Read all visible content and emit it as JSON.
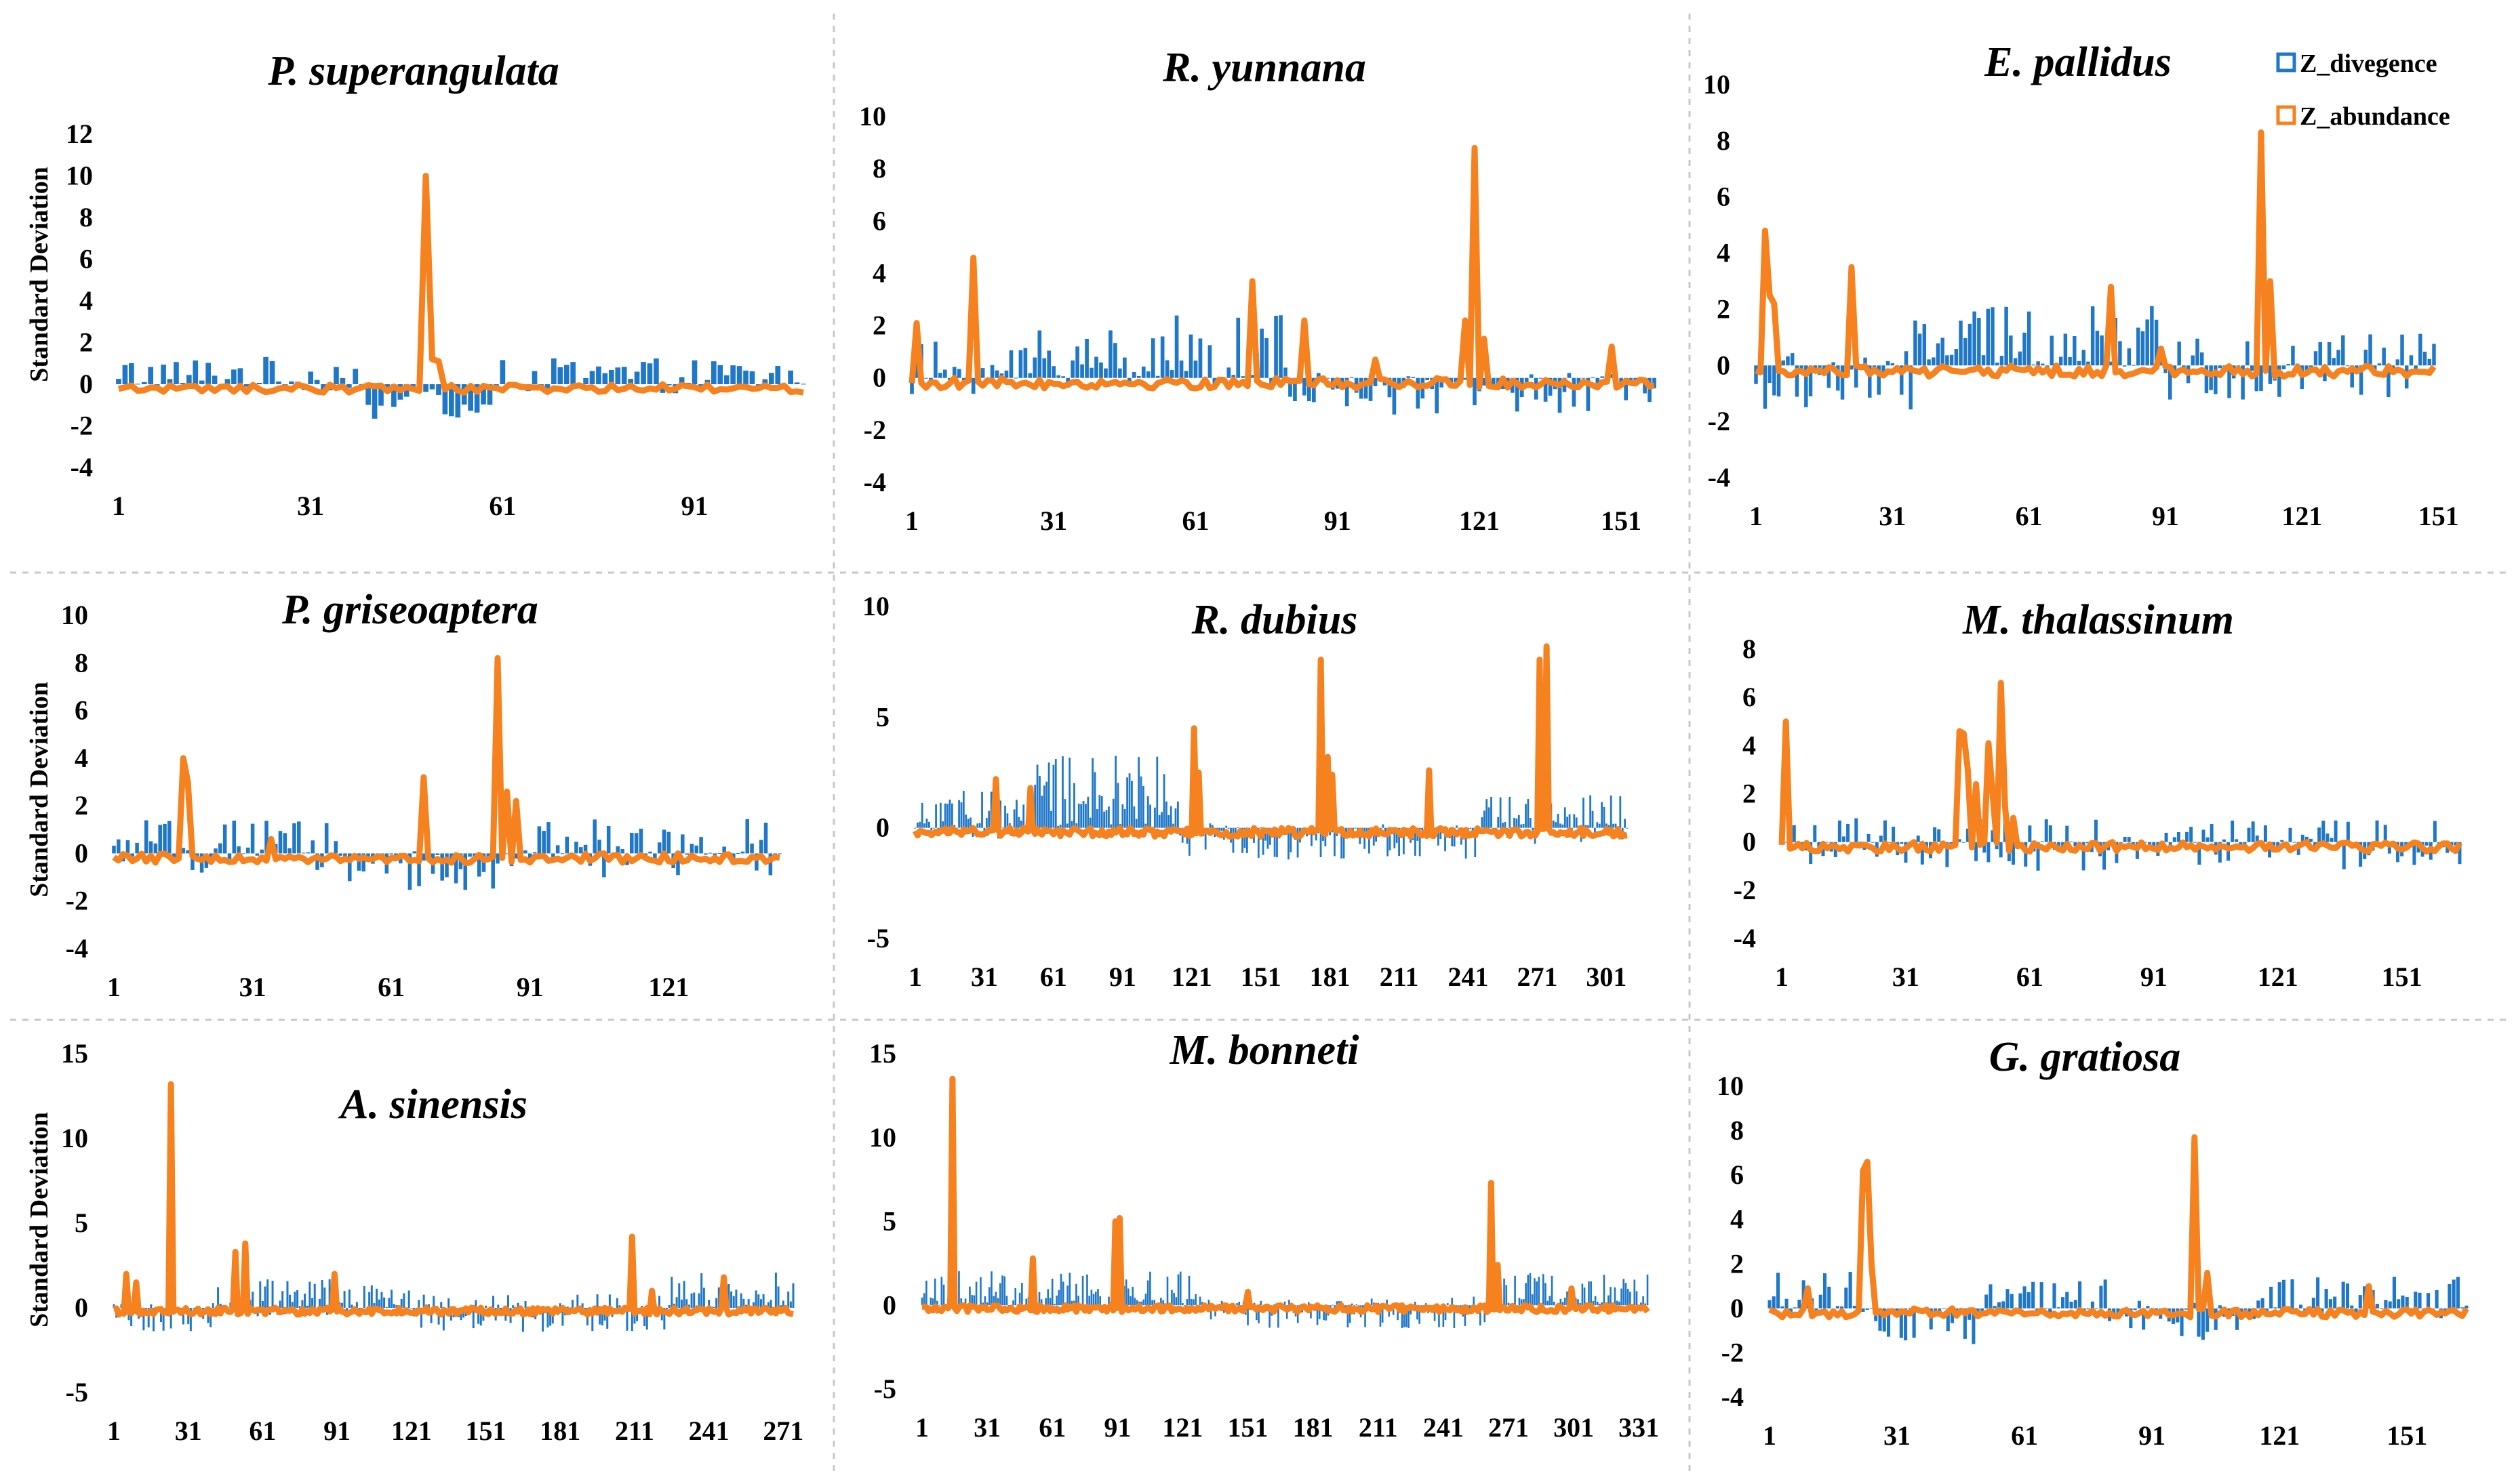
{
  "legend": {
    "items": [
      {
        "label": "Z_divegence",
        "color": "#1f77c8"
      },
      {
        "label": "Z_abundance",
        "color": "#f5821f"
      }
    ]
  },
  "ylabel": "Standard Deviation",
  "ylabel_spaced": "Standard  Deviation",
  "colors": {
    "divergence": "#1f77c8",
    "abundance": "#f5821f",
    "grid": "#c8c8c8"
  },
  "chart_data": [
    {
      "type": "bar+line",
      "title": "P. superangulata",
      "n": 108,
      "ylim": [
        -4,
        12
      ],
      "yticks": [
        "-4",
        "-2",
        "0",
        "2",
        "4",
        "6",
        "8",
        "10",
        "12"
      ],
      "xticks": [
        "1",
        "31",
        "61",
        "91"
      ],
      "xtick_values": [
        1,
        31,
        61,
        91
      ],
      "ylabel_visible": true,
      "ylabel_variant": "plain",
      "spikes": [
        {
          "x": 49,
          "value": 10
        },
        {
          "x": 50,
          "value": 1.2
        },
        {
          "x": 51,
          "value": 1.1
        }
      ],
      "divergence_profile": [
        {
          "from": 1,
          "to": 39,
          "mean": 0.5,
          "amp": 0.6
        },
        {
          "from": 40,
          "to": 60,
          "mean": -1.3,
          "amp": 0.6
        },
        {
          "from": 61,
          "to": 108,
          "mean": 0.4,
          "amp": 0.6
        }
      ]
    },
    {
      "type": "bar+line",
      "title": "R. yunnana",
      "n": 158,
      "ylim": [
        -4,
        10
      ],
      "yticks": [
        "-4",
        "-2",
        "0",
        "2",
        "4",
        "6",
        "8",
        "10"
      ],
      "xticks": [
        "1",
        "31",
        "61",
        "91",
        "121",
        "151"
      ],
      "xtick_values": [
        1,
        31,
        61,
        91,
        121,
        151
      ],
      "ylabel_visible": false,
      "ylabel_variant": "plain",
      "spikes": [
        {
          "x": 2,
          "value": 2.1
        },
        {
          "x": 14,
          "value": 4.6
        },
        {
          "x": 73,
          "value": 3.7
        },
        {
          "x": 84,
          "value": 2.2
        },
        {
          "x": 99,
          "value": 0.7
        },
        {
          "x": 118,
          "value": 2.2
        },
        {
          "x": 120,
          "value": 8.8
        },
        {
          "x": 122,
          "value": 1.5
        },
        {
          "x": 149,
          "value": 1.2
        }
      ],
      "divergence_profile": [
        {
          "from": 1,
          "to": 25,
          "mean": 0.3,
          "amp": 0.8
        },
        {
          "from": 26,
          "to": 80,
          "mean": 1.0,
          "amp": 1.0
        },
        {
          "from": 81,
          "to": 158,
          "mean": -0.6,
          "amp": 0.6
        }
      ]
    },
    {
      "type": "bar+line",
      "title": "E. pallidus",
      "n": 150,
      "ylim": [
        -4,
        10
      ],
      "yticks": [
        "-4",
        "-2",
        "0",
        "2",
        "4",
        "6",
        "8",
        "10"
      ],
      "xticks": [
        "1",
        "31",
        "61",
        "91",
        "121",
        "151"
      ],
      "xtick_values": [
        1,
        31,
        61,
        91,
        121,
        151
      ],
      "ylabel_visible": false,
      "ylabel_variant": "plain",
      "spikes": [
        {
          "x": 3,
          "value": 4.8
        },
        {
          "x": 4,
          "value": 2.5
        },
        {
          "x": 5,
          "value": 2.2
        },
        {
          "x": 22,
          "value": 3.5
        },
        {
          "x": 79,
          "value": 2.8
        },
        {
          "x": 112,
          "value": 8.3
        },
        {
          "x": 114,
          "value": 3.0
        },
        {
          "x": 90,
          "value": 0.6
        }
      ],
      "divergence_profile": [
        {
          "from": 1,
          "to": 35,
          "mean": -0.6,
          "amp": 0.8
        },
        {
          "from": 36,
          "to": 90,
          "mean": 1.0,
          "amp": 0.8
        },
        {
          "from": 91,
          "to": 150,
          "mean": 0.0,
          "amp": 0.9
        }
      ]
    },
    {
      "type": "bar+line",
      "title": "P. griseoaptera",
      "n": 145,
      "ylim": [
        -4,
        10
      ],
      "yticks": [
        "-4",
        "-2",
        "0",
        "2",
        "4",
        "6",
        "8",
        "10"
      ],
      "xticks": [
        "1",
        "31",
        "61",
        "91",
        "121"
      ],
      "xtick_values": [
        1,
        31,
        61,
        91,
        121
      ],
      "ylabel_visible": true,
      "ylabel_variant": "spaced",
      "spikes": [
        {
          "x": 16,
          "value": 4.0
        },
        {
          "x": 17,
          "value": 3.0
        },
        {
          "x": 68,
          "value": 3.2
        },
        {
          "x": 84,
          "value": 8.2
        },
        {
          "x": 86,
          "value": 2.6
        },
        {
          "x": 88,
          "value": 2.2
        },
        {
          "x": 35,
          "value": 0.6
        }
      ],
      "divergence_profile": [
        {
          "from": 1,
          "to": 50,
          "mean": 0.3,
          "amp": 0.8
        },
        {
          "from": 51,
          "to": 90,
          "mean": -0.7,
          "amp": 0.6
        },
        {
          "from": 91,
          "to": 145,
          "mean": 0.2,
          "amp": 0.9
        }
      ]
    },
    {
      "type": "bar+line",
      "title": "R. dubius",
      "n": 310,
      "ylim": [
        -5,
        10
      ],
      "yticks": [
        "-5",
        "0",
        "5",
        "10"
      ],
      "xticks": [
        "1",
        "31",
        "61",
        "91",
        "121",
        "151",
        "181",
        "211",
        "241",
        "271",
        "301"
      ],
      "xtick_values": [
        1,
        31,
        61,
        91,
        121,
        151,
        181,
        211,
        241,
        271,
        301
      ],
      "ylabel_visible": false,
      "ylabel_variant": "plain",
      "spikes": [
        {
          "x": 36,
          "value": 2.2
        },
        {
          "x": 51,
          "value": 1.8
        },
        {
          "x": 122,
          "value": 4.5
        },
        {
          "x": 124,
          "value": 2.5
        },
        {
          "x": 177,
          "value": 7.6
        },
        {
          "x": 180,
          "value": 3.2
        },
        {
          "x": 182,
          "value": 2.4
        },
        {
          "x": 224,
          "value": 2.6
        },
        {
          "x": 272,
          "value": 7.6
        },
        {
          "x": 275,
          "value": 8.2
        }
      ],
      "divergence_profile": [
        {
          "from": 1,
          "to": 50,
          "mean": 0.6,
          "amp": 0.8
        },
        {
          "from": 51,
          "to": 115,
          "mean": 1.6,
          "amp": 1.2
        },
        {
          "from": 116,
          "to": 245,
          "mean": -0.6,
          "amp": 0.6
        },
        {
          "from": 246,
          "to": 310,
          "mean": 0.4,
          "amp": 0.8
        }
      ]
    },
    {
      "type": "bar+line",
      "title": "M. thalassinum",
      "n": 165,
      "ylim": [
        -4,
        8
      ],
      "yticks": [
        "-4",
        "-2",
        "0",
        "2",
        "4",
        "6",
        "8"
      ],
      "xticks": [
        "1",
        "31",
        "61",
        "91",
        "121",
        "151"
      ],
      "xtick_values": [
        1,
        31,
        61,
        91,
        121,
        151
      ],
      "ylabel_visible": false,
      "ylabel_variant": "plain",
      "spikes": [
        {
          "x": 2,
          "value": 5.0
        },
        {
          "x": 44,
          "value": 4.6
        },
        {
          "x": 45,
          "value": 4.5
        },
        {
          "x": 46,
          "value": 3.0
        },
        {
          "x": 48,
          "value": 2.4
        },
        {
          "x": 51,
          "value": 4.1
        },
        {
          "x": 52,
          "value": 2.0
        },
        {
          "x": 54,
          "value": 6.6
        },
        {
          "x": 55,
          "value": 1.5
        },
        {
          "x": 57,
          "value": 1.0
        }
      ],
      "divergence_profile": [
        {
          "from": 1,
          "to": 165,
          "mean": -0.1,
          "amp": 0.8
        }
      ]
    },
    {
      "type": "bar+line",
      "title": "A. sinensis",
      "n": 275,
      "ylim": [
        -5,
        15
      ],
      "yticks": [
        "-5",
        "0",
        "5",
        "10",
        "15"
      ],
      "xticks": [
        "1",
        "31",
        "61",
        "91",
        "121",
        "151",
        "181",
        "211",
        "241",
        "271"
      ],
      "xtick_values": [
        1,
        31,
        61,
        91,
        121,
        151,
        181,
        211,
        241,
        271
      ],
      "ylabel_visible": true,
      "ylabel_variant": "spaced",
      "spikes": [
        {
          "x": 6,
          "value": 2.0
        },
        {
          "x": 10,
          "value": 1.5
        },
        {
          "x": 24,
          "value": 13.2
        },
        {
          "x": 50,
          "value": 3.3
        },
        {
          "x": 54,
          "value": 3.8
        },
        {
          "x": 90,
          "value": 2.0
        },
        {
          "x": 210,
          "value": 4.2
        },
        {
          "x": 218,
          "value": 1.0
        },
        {
          "x": 247,
          "value": 1.8
        }
      ],
      "divergence_profile": [
        {
          "from": 1,
          "to": 40,
          "mean": -0.6,
          "amp": 0.6
        },
        {
          "from": 41,
          "to": 120,
          "mean": 0.6,
          "amp": 0.8
        },
        {
          "from": 121,
          "to": 225,
          "mean": -0.3,
          "amp": 0.8
        },
        {
          "from": 226,
          "to": 275,
          "mean": 1.0,
          "amp": 0.8
        }
      ]
    },
    {
      "type": "bar+line",
      "title": "M. bonneti",
      "n": 335,
      "ylim": [
        -5,
        15
      ],
      "yticks": [
        "-5",
        "0",
        "5",
        "10",
        "15"
      ],
      "xticks": [
        "1",
        "31",
        "61",
        "91",
        "121",
        "151",
        "181",
        "211",
        "241",
        "271",
        "301",
        "331"
      ],
      "xtick_values": [
        1,
        31,
        61,
        91,
        121,
        151,
        181,
        211,
        241,
        271,
        301,
        331
      ],
      "ylabel_visible": false,
      "ylabel_variant": "plain",
      "spikes": [
        {
          "x": 15,
          "value": 13.5
        },
        {
          "x": 52,
          "value": 2.8
        },
        {
          "x": 90,
          "value": 5.0
        },
        {
          "x": 92,
          "value": 5.2
        },
        {
          "x": 263,
          "value": 7.3
        },
        {
          "x": 266,
          "value": 2.4
        },
        {
          "x": 151,
          "value": 0.8
        },
        {
          "x": 300,
          "value": 1.0
        }
      ],
      "divergence_profile": [
        {
          "from": 1,
          "to": 130,
          "mean": 0.8,
          "amp": 0.9
        },
        {
          "from": 131,
          "to": 260,
          "mean": -0.4,
          "amp": 0.7
        },
        {
          "from": 261,
          "to": 335,
          "mean": 0.8,
          "amp": 0.8
        }
      ]
    },
    {
      "type": "bar+line",
      "title": "G. gratiosa",
      "n": 165,
      "ylim": [
        -4,
        10
      ],
      "yticks": [
        "-4",
        "-2",
        "0",
        "2",
        "4",
        "6",
        "8",
        "10"
      ],
      "xticks": [
        "1",
        "31",
        "61",
        "91",
        "121",
        "151"
      ],
      "xtick_values": [
        1,
        31,
        61,
        91,
        121,
        151
      ],
      "ylabel_visible": false,
      "ylabel_variant": "plain",
      "spikes": [
        {
          "x": 10,
          "value": 0.9
        },
        {
          "x": 23,
          "value": 6.2
        },
        {
          "x": 24,
          "value": 6.6
        },
        {
          "x": 25,
          "value": 2.0
        },
        {
          "x": 101,
          "value": 7.7
        },
        {
          "x": 104,
          "value": 1.6
        },
        {
          "x": 142,
          "value": 1.0
        }
      ],
      "divergence_profile": [
        {
          "from": 1,
          "to": 22,
          "mean": 0.7,
          "amp": 0.8
        },
        {
          "from": 23,
          "to": 50,
          "mean": -0.8,
          "amp": 0.6
        },
        {
          "from": 51,
          "to": 80,
          "mean": 0.5,
          "amp": 0.6
        },
        {
          "from": 81,
          "to": 115,
          "mean": -0.6,
          "amp": 0.7
        },
        {
          "from": 116,
          "to": 165,
          "mean": 0.5,
          "amp": 0.7
        }
      ]
    }
  ]
}
